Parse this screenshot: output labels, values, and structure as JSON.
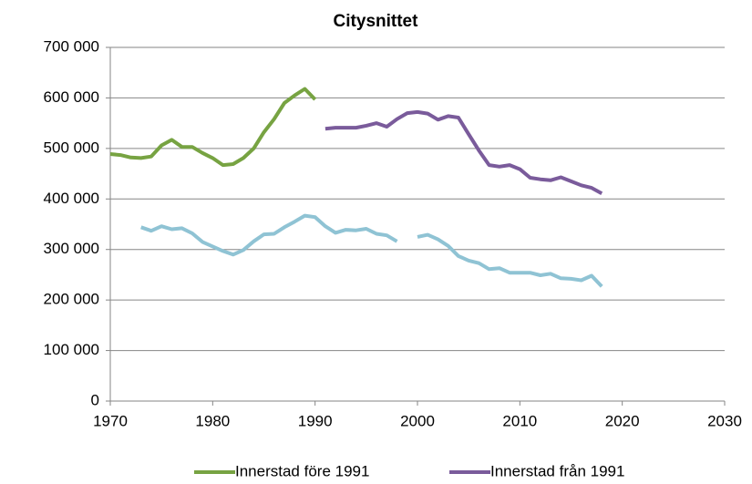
{
  "chart_data": {
    "type": "line",
    "title": "Citysnittet",
    "x": [
      1970,
      1971,
      1972,
      1973,
      1974,
      1975,
      1976,
      1977,
      1978,
      1979,
      1980,
      1981,
      1982,
      1983,
      1984,
      1985,
      1986,
      1987,
      1988,
      1989,
      1990,
      1991,
      1992,
      1993,
      1994,
      1995,
      1996,
      1997,
      1998,
      1999,
      2000,
      2001,
      2002,
      2003,
      2004,
      2005,
      2006,
      2007,
      2008,
      2009,
      2010,
      2011,
      2012,
      2013,
      2014,
      2015,
      2016,
      2017,
      2018
    ],
    "series": [
      {
        "name": "Innerstad före 1991",
        "color": "#77a342",
        "values": [
          489000,
          487000,
          482000,
          481000,
          484000,
          506000,
          517000,
          503000,
          503000,
          491000,
          481000,
          467000,
          469000,
          481000,
          500000,
          532000,
          558000,
          590000,
          605000,
          618000,
          597000,
          null,
          null,
          null,
          null,
          null,
          null,
          null,
          null,
          null,
          null,
          null,
          null,
          null,
          null,
          null,
          null,
          null,
          null,
          null,
          null,
          null,
          null,
          null,
          null,
          null,
          null,
          null,
          null
        ]
      },
      {
        "name": "Innerstad från 1991",
        "color": "#7a5b9b",
        "values": [
          null,
          null,
          null,
          null,
          null,
          null,
          null,
          null,
          null,
          null,
          null,
          null,
          null,
          null,
          null,
          null,
          null,
          null,
          null,
          null,
          null,
          539000,
          541000,
          541000,
          541000,
          545000,
          550000,
          543000,
          558000,
          570000,
          572000,
          569000,
          557000,
          564000,
          561000,
          528000,
          496000,
          467000,
          464000,
          467000,
          459000,
          442000,
          439000,
          437000,
          443000,
          435000,
          427000,
          422000,
          411000
        ]
      },
      {
        "color": "#8fc3d4",
        "values": [
          null,
          null,
          null,
          344000,
          337000,
          346000,
          340000,
          342000,
          332000,
          315000,
          306000,
          297000,
          290000,
          299000,
          316000,
          330000,
          331000,
          344000,
          355000,
          367000,
          364000,
          346000,
          333000,
          339000,
          338000,
          341000,
          331000,
          328000,
          316000,
          null,
          325000,
          329000,
          320000,
          307000,
          287000,
          278000,
          273000,
          261000,
          263000,
          254000,
          254000,
          254000,
          249000,
          252000,
          243000,
          242000,
          239000,
          248000,
          227000
        ]
      }
    ],
    "xlim": [
      1970,
      2030
    ],
    "xticks": [
      1970,
      1980,
      1990,
      2000,
      2010,
      2020,
      2030
    ],
    "ylim": [
      0,
      700000
    ],
    "yticks": [
      0,
      {
        "value": 100000,
        "label": "100 000"
      },
      {
        "value": 200000,
        "label": "200 000"
      },
      {
        "value": 300000,
        "label": "300 000"
      },
      {
        "value": 400000,
        "label": "400 000"
      },
      {
        "value": 500000,
        "label": "500 000"
      },
      {
        "value": 600000,
        "label": "600 000"
      },
      {
        "value": 700000,
        "label": "700 000"
      }
    ],
    "grid": true,
    "legend": "bottom"
  }
}
